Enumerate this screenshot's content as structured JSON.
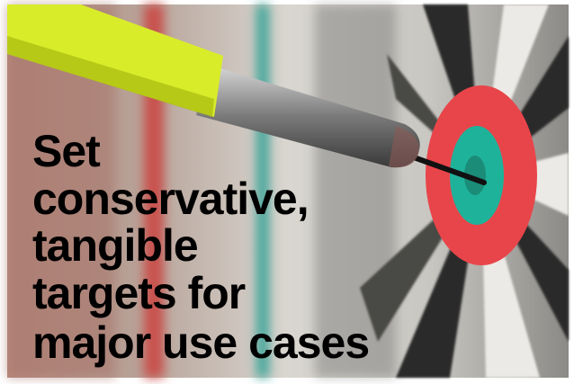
{
  "headline": {
    "lines": [
      "Set",
      "conservative,",
      "tangible",
      "targets for",
      "major use cases"
    ]
  }
}
